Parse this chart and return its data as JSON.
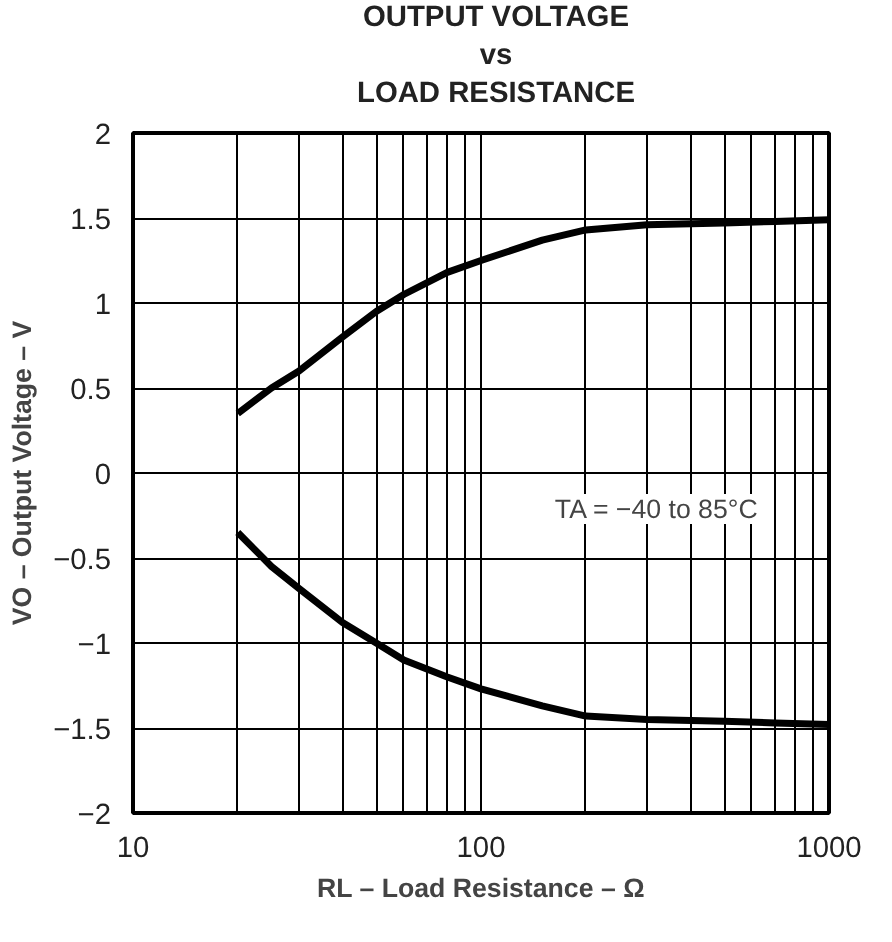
{
  "chart_data": {
    "type": "line",
    "title": "OUTPUT VOLTAGE\nvs\nLOAD RESISTANCE",
    "xlabel": "RL – Load Resistance – Ω",
    "ylabel": "VO – Output Voltage – V",
    "log": "x",
    "grid": true,
    "xlim": [
      10,
      1000
    ],
    "ylim": [
      -2,
      2
    ],
    "xticks": [
      10,
      {
        "value": 20,
        "label": null
      },
      {
        "value": 30,
        "label": null
      },
      {
        "value": 40,
        "label": null
      },
      {
        "value": 50,
        "label": null
      },
      {
        "value": 60,
        "label": null
      },
      {
        "value": 70,
        "label": null
      },
      {
        "value": 80,
        "label": null
      },
      {
        "value": 90,
        "label": null
      },
      100,
      {
        "value": 200,
        "label": null
      },
      {
        "value": 300,
        "label": null
      },
      {
        "value": 400,
        "label": null
      },
      {
        "value": 500,
        "label": null
      },
      {
        "value": 600,
        "label": null
      },
      {
        "value": 700,
        "label": null
      },
      {
        "value": 800,
        "label": null
      },
      {
        "value": 900,
        "label": null
      },
      1000
    ],
    "yticks": [
      {
        "value": -2,
        "label": "−2"
      },
      {
        "value": -1.5,
        "label": "−1.5"
      },
      {
        "value": -1,
        "label": "−1"
      },
      {
        "value": -0.5,
        "label": "−0.5"
      },
      0,
      0.5,
      1,
      1.5,
      2
    ],
    "x": [
      20,
      25,
      30,
      40,
      50,
      60,
      80,
      100,
      150,
      200,
      300,
      500,
      700,
      1000
    ],
    "series": [
      {
        "color": "#000000",
        "values": [
          0.35,
          0.5,
          0.6,
          0.8,
          0.95,
          1.05,
          1.18,
          1.25,
          1.37,
          1.43,
          1.46,
          1.47,
          1.48,
          1.49
        ]
      },
      {
        "color": "#000000",
        "values": [
          -0.35,
          -0.55,
          -0.68,
          -0.88,
          -1.0,
          -1.1,
          -1.2,
          -1.27,
          -1.37,
          -1.43,
          -1.45,
          -1.46,
          -1.47,
          -1.48
        ]
      }
    ],
    "annotations": [
      "TA = −40 to 85°C"
    ]
  }
}
